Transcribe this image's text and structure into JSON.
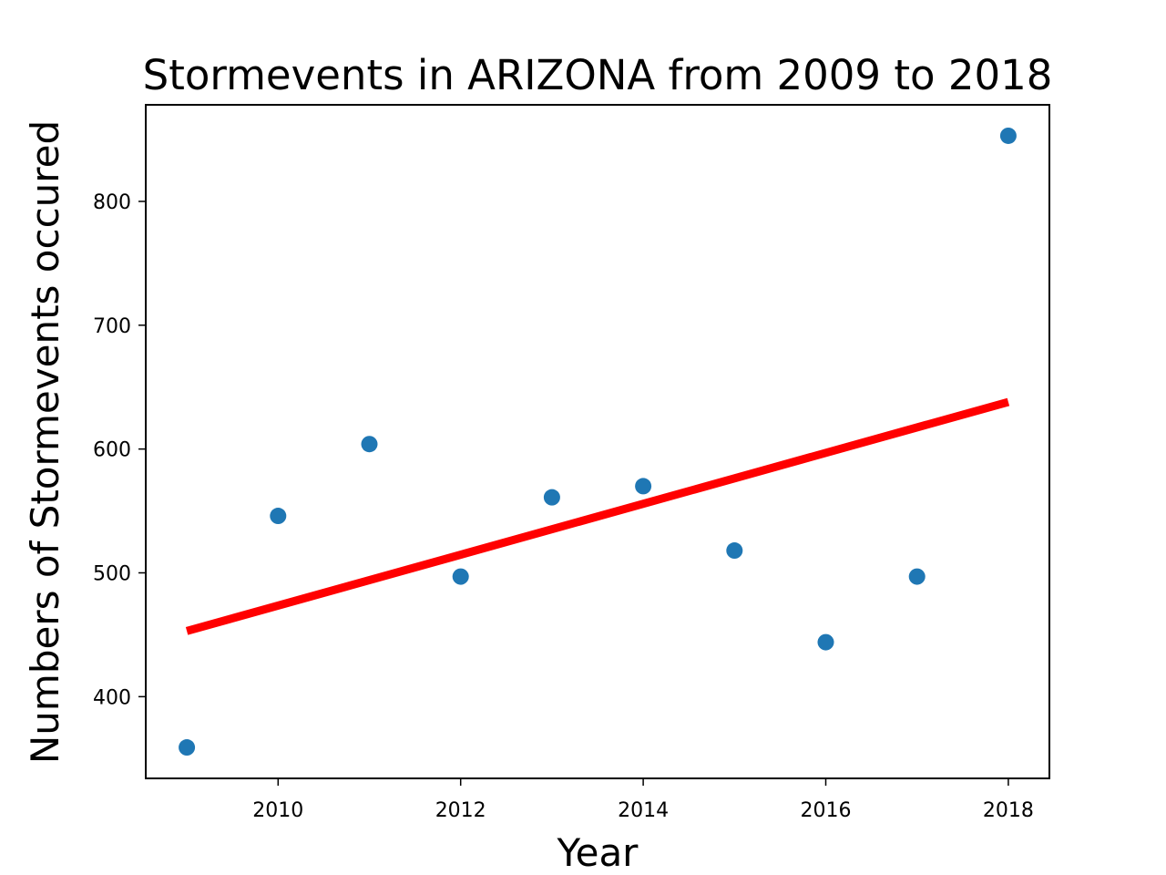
{
  "chart_data": {
    "type": "scatter",
    "title": "Stormevents in ARIZONA from 2009 to 2018",
    "xlabel": "Year",
    "ylabel": "Numbers of Stormevents occured",
    "x": [
      2009,
      2010,
      2011,
      2012,
      2013,
      2014,
      2015,
      2016,
      2017,
      2018
    ],
    "y": [
      359,
      546,
      604,
      497,
      561,
      570,
      518,
      444,
      497,
      853
    ],
    "xlim": [
      2008.55,
      2018.45
    ],
    "ylim": [
      334,
      878
    ],
    "xticks": [
      2010,
      2012,
      2014,
      2016,
      2018
    ],
    "yticks": [
      400,
      500,
      600,
      700,
      800
    ],
    "grid": false,
    "point_color": "#1f77b4",
    "trendline": {
      "color": "#ff0000",
      "x": [
        2009,
        2018
      ],
      "y": [
        453,
        638
      ]
    }
  }
}
